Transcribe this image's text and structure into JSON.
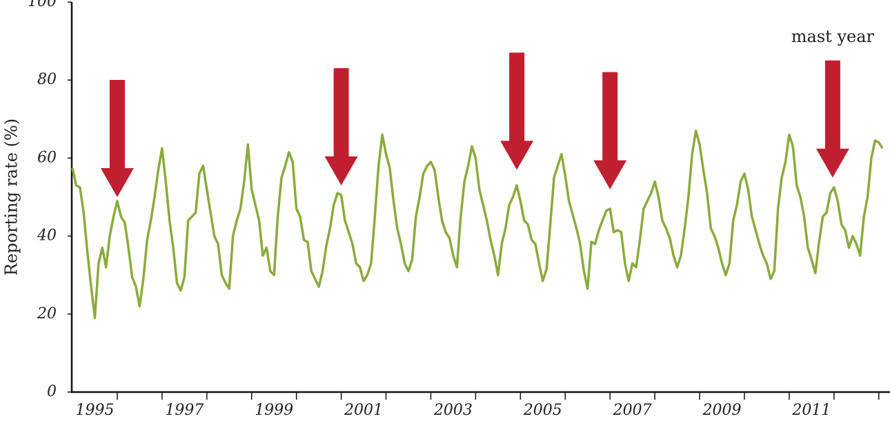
{
  "chart_data": {
    "type": "line",
    "y_label": "Reporting rate (%)",
    "ylim": [
      0,
      100
    ],
    "yticks": [
      0,
      20,
      40,
      60,
      80,
      100
    ],
    "xlim": [
      1995,
      2013.25
    ],
    "xticks": [
      {
        "value": 1995.5,
        "label": "1995"
      },
      {
        "value": 1997.5,
        "label": "1997"
      },
      {
        "value": 1999.5,
        "label": "1999"
      },
      {
        "value": 2001.5,
        "label": "2001"
      },
      {
        "value": 2003.5,
        "label": "2003"
      },
      {
        "value": 2005.5,
        "label": "2005"
      },
      {
        "value": 2007.5,
        "label": "2007"
      },
      {
        "value": 2009.5,
        "label": "2009"
      },
      {
        "value": 2011.5,
        "label": "2011"
      }
    ],
    "minor_xticks": [
      1996,
      1997,
      1998,
      1999,
      2000,
      2001,
      2002,
      2003,
      2004,
      2005,
      2006,
      2007,
      2008,
      2009,
      2010,
      2011,
      2012,
      2013
    ],
    "annotation": "mast year",
    "arrow_color": "#c01f2f",
    "arrows": {
      "x": [
        1996,
        2001,
        2004.92,
        2007,
        2011.97
      ],
      "y": [
        50,
        53,
        57,
        52,
        55
      ]
    },
    "series": [
      {
        "color": "#8aab3c",
        "x": [
          1995,
          1995.083,
          1995.167,
          1995.25,
          1995.333,
          1995.417,
          1995.5,
          1995.583,
          1995.667,
          1995.75,
          1995.833,
          1995.917,
          1996,
          1996.083,
          1996.167,
          1996.25,
          1996.333,
          1996.417,
          1996.5,
          1996.583,
          1996.667,
          1996.75,
          1996.833,
          1996.917,
          1997,
          1997.083,
          1997.167,
          1997.25,
          1997.333,
          1997.417,
          1997.5,
          1997.583,
          1997.667,
          1997.75,
          1997.833,
          1997.917,
          1998,
          1998.083,
          1998.167,
          1998.25,
          1998.333,
          1998.417,
          1998.5,
          1998.583,
          1998.667,
          1998.75,
          1998.833,
          1998.917,
          1999,
          1999.083,
          1999.167,
          1999.25,
          1999.333,
          1999.417,
          1999.5,
          1999.583,
          1999.667,
          1999.75,
          1999.833,
          1999.917,
          2000,
          2000.083,
          2000.167,
          2000.25,
          2000.333,
          2000.417,
          2000.5,
          2000.583,
          2000.667,
          2000.75,
          2000.833,
          2000.917,
          2001,
          2001.083,
          2001.167,
          2001.25,
          2001.333,
          2001.417,
          2001.5,
          2001.583,
          2001.667,
          2001.75,
          2001.833,
          2001.917,
          2002,
          2002.083,
          2002.167,
          2002.25,
          2002.333,
          2002.417,
          2002.5,
          2002.583,
          2002.667,
          2002.75,
          2002.833,
          2002.917,
          2003,
          2003.083,
          2003.167,
          2003.25,
          2003.333,
          2003.417,
          2003.5,
          2003.583,
          2003.667,
          2003.75,
          2003.833,
          2003.917,
          2004,
          2004.083,
          2004.167,
          2004.25,
          2004.333,
          2004.417,
          2004.5,
          2004.583,
          2004.667,
          2004.75,
          2004.833,
          2004.917,
          2005,
          2005.083,
          2005.167,
          2005.25,
          2005.333,
          2005.417,
          2005.5,
          2005.583,
          2005.667,
          2005.75,
          2005.833,
          2005.917,
          2006,
          2006.083,
          2006.167,
          2006.25,
          2006.333,
          2006.417,
          2006.5,
          2006.583,
          2006.667,
          2006.75,
          2006.833,
          2006.917,
          2007,
          2007.083,
          2007.167,
          2007.25,
          2007.333,
          2007.417,
          2007.5,
          2007.583,
          2007.667,
          2007.75,
          2007.833,
          2007.917,
          2008,
          2008.083,
          2008.167,
          2008.25,
          2008.333,
          2008.417,
          2008.5,
          2008.583,
          2008.667,
          2008.75,
          2008.833,
          2008.917,
          2009,
          2009.083,
          2009.167,
          2009.25,
          2009.333,
          2009.417,
          2009.5,
          2009.583,
          2009.667,
          2009.75,
          2009.833,
          2009.917,
          2010,
          2010.083,
          2010.167,
          2010.25,
          2010.333,
          2010.417,
          2010.5,
          2010.583,
          2010.667,
          2010.75,
          2010.833,
          2010.917,
          2011,
          2011.083,
          2011.167,
          2011.25,
          2011.333,
          2011.417,
          2011.5,
          2011.583,
          2011.667,
          2011.75,
          2011.833,
          2011.917,
          2012,
          2012.083,
          2012.167,
          2012.25,
          2012.333,
          2012.417,
          2012.5,
          2012.583,
          2012.667,
          2012.75,
          2012.833,
          2012.917,
          2013,
          2013.083
        ],
        "values": [
          57.5,
          53,
          52.5,
          46,
          36,
          27,
          19,
          33,
          37,
          32,
          40,
          45,
          49,
          45,
          43.5,
          37,
          29.5,
          27,
          22,
          29,
          39,
          44,
          50,
          57,
          62.5,
          54,
          44,
          37,
          28,
          26,
          29.5,
          44,
          45,
          46,
          56,
          58,
          52,
          46,
          40,
          38,
          30,
          28,
          26.5,
          40,
          44,
          47,
          54,
          63.5,
          52,
          48,
          44,
          35,
          37,
          31,
          30,
          45,
          55,
          58,
          61.5,
          59,
          47,
          45,
          39,
          38.5,
          31,
          29,
          27,
          31,
          37.5,
          42,
          48,
          51,
          50.5,
          44,
          41,
          38,
          33,
          32,
          28.5,
          30,
          33,
          45,
          58,
          66,
          61,
          57.5,
          49,
          42,
          38,
          33,
          31,
          34,
          45,
          50,
          56,
          58,
          59,
          57,
          50,
          44,
          41,
          39.5,
          35,
          32,
          45,
          54,
          58,
          63,
          60,
          52,
          48,
          44,
          39,
          35,
          30,
          38,
          42,
          48,
          50,
          53,
          49,
          44,
          43,
          39,
          38,
          33,
          28.5,
          31.5,
          43,
          55,
          58,
          61,
          55.5,
          49,
          45.5,
          42,
          38,
          31,
          26.5,
          38.5,
          38,
          41.5,
          44,
          46.5,
          47,
          41,
          41.5,
          41,
          33,
          28.5,
          33,
          32,
          39,
          47,
          49,
          51,
          54,
          50,
          44,
          42,
          39.5,
          35,
          32,
          35,
          42,
          50,
          61,
          67,
          63.5,
          57,
          51,
          42,
          40,
          37,
          33,
          30,
          33,
          44,
          48,
          54,
          56,
          52,
          45,
          41.5,
          38,
          35,
          33,
          29,
          31,
          47,
          55,
          59,
          66,
          63,
          53,
          50,
          45,
          37,
          34,
          30.5,
          38.5,
          45,
          46,
          51,
          52.5,
          49,
          43,
          41.5,
          37,
          40,
          38,
          35,
          45,
          50,
          60,
          64.5,
          64,
          62.5
        ]
      }
    ]
  }
}
